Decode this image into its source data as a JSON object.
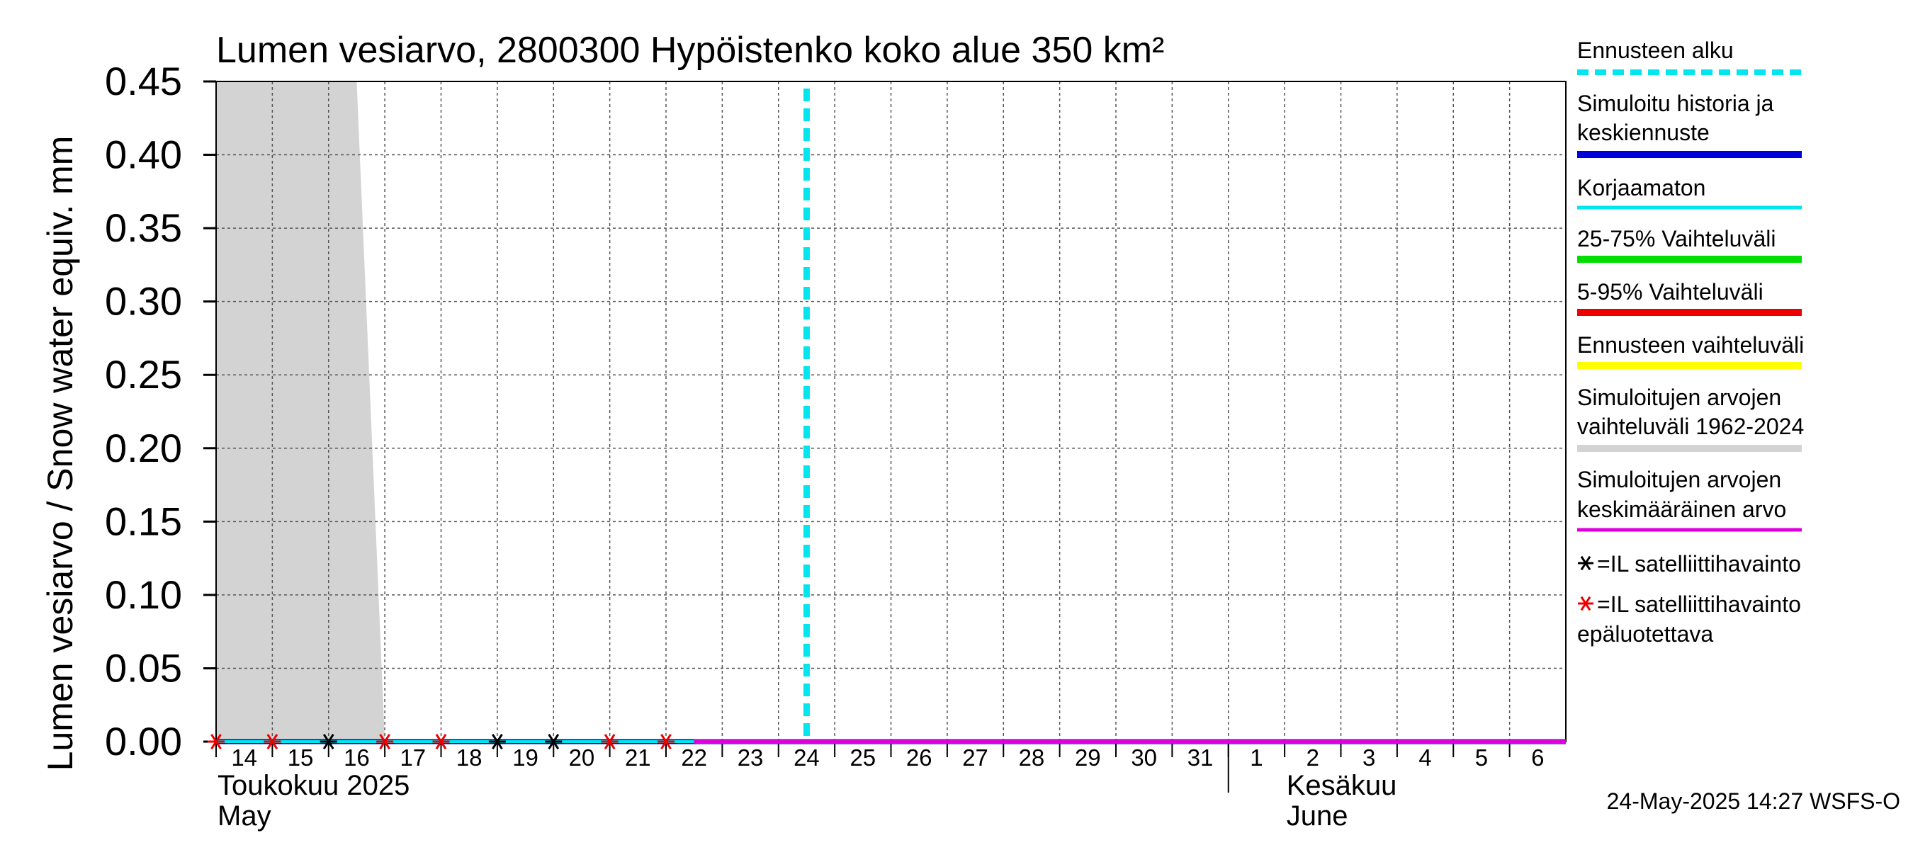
{
  "chart_data": {
    "type": "line",
    "title": "Lumen vesiarvo, 2800300 Hypöistenko koko alue 350 km²",
    "ylabel": "Lumen vesiarvo / Snow water equiv.    mm",
    "ylim": [
      0,
      0.45
    ],
    "yticks": [
      "0.00",
      "0.05",
      "0.10",
      "0.15",
      "0.20",
      "0.25",
      "0.30",
      "0.35",
      "0.40",
      "0.45"
    ],
    "ytick_values": [
      0,
      0.05,
      0.1,
      0.15,
      0.2,
      0.25,
      0.3,
      0.35,
      0.4,
      0.45
    ],
    "x_day_labels": [
      "14",
      "15",
      "16",
      "17",
      "18",
      "19",
      "20",
      "21",
      "22",
      "23",
      "24",
      "25",
      "26",
      "27",
      "28",
      "29",
      "30",
      "31",
      "1",
      "2",
      "3",
      "4",
      "5",
      "6"
    ],
    "x_range_days": [
      0,
      24
    ],
    "month_labels": [
      {
        "line1": "Toukokuu  2025",
        "line2": "May"
      },
      {
        "line1": "Kesäkuu",
        "line2": "June"
      }
    ],
    "month_boundary_day": 18,
    "forecast_start_day": 10.5,
    "historical_range": {
      "color": "#d3d3d3",
      "points": [
        [
          0,
          0.45
        ],
        [
          2.5,
          0.45
        ],
        [
          3,
          0
        ],
        [
          0,
          0
        ]
      ]
    },
    "series": [
      {
        "name": "Simuloitu historia ja keskiennuste",
        "color": "#0000dd",
        "x": [
          0,
          24
        ],
        "y": [
          0,
          0
        ]
      },
      {
        "name": "Korjaamaton",
        "color": "#00e5ee",
        "x": [
          0,
          8.5
        ],
        "y": [
          0,
          0
        ]
      },
      {
        "name": "Simuloitujen arvojen keskimääräinen arvo",
        "color": "#dd00dd",
        "x": [
          8.5,
          24
        ],
        "y": [
          0,
          0
        ]
      }
    ],
    "observations": [
      {
        "day": 0,
        "value": 0,
        "type": "unreliable"
      },
      {
        "day": 1,
        "value": 0,
        "type": "unreliable"
      },
      {
        "day": 2,
        "value": 0,
        "type": "reliable"
      },
      {
        "day": 3,
        "value": 0,
        "type": "unreliable"
      },
      {
        "day": 4,
        "value": 0,
        "type": "unreliable"
      },
      {
        "day": 5,
        "value": 0,
        "type": "reliable"
      },
      {
        "day": 6,
        "value": 0,
        "type": "reliable"
      },
      {
        "day": 7,
        "value": 0,
        "type": "unreliable"
      },
      {
        "day": 8,
        "value": 0,
        "type": "unreliable"
      }
    ],
    "legend": [
      {
        "lines": [
          "Ennusteen alku"
        ],
        "color": "#00e5ee",
        "style": "dashed"
      },
      {
        "lines": [
          "Simuloitu historia ja",
          "keskiennuste"
        ],
        "color": "#0000dd",
        "style": "solid"
      },
      {
        "lines": [
          "Korjaamaton"
        ],
        "color": "#00e5ee",
        "style": "thin"
      },
      {
        "lines": [
          "25-75% Vaihteluväli"
        ],
        "color": "#00dd00",
        "style": "solid"
      },
      {
        "lines": [
          "5-95% Vaihteluväli"
        ],
        "color": "#ee0000",
        "style": "solid"
      },
      {
        "lines": [
          "Ennusteen vaihteluväli"
        ],
        "color": "#ffff00",
        "style": "solid"
      },
      {
        "lines": [
          "Simuloitujen arvojen",
          "vaihteluväli 1962-2024"
        ],
        "color": "#d3d3d3",
        "style": "solid"
      },
      {
        "lines": [
          "Simuloitujen arvojen",
          "keskimääräinen arvo"
        ],
        "color": "#dd00dd",
        "style": "thin"
      },
      {
        "lines": [
          "=IL satelliittihavainto"
        ],
        "color": "#000000",
        "style": "star"
      },
      {
        "lines": [
          "=IL satelliittihavainto",
          "epäluotettava"
        ],
        "color": "#ee0000",
        "style": "star"
      }
    ],
    "grid": true,
    "legend_position": "right"
  },
  "footer": "24-May-2025 14:27 WSFS-O"
}
